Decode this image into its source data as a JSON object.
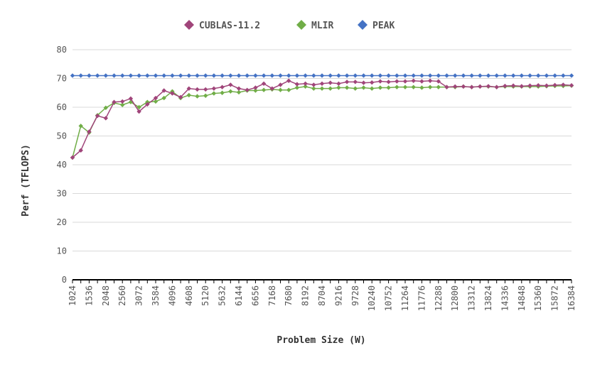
{
  "chart_data": {
    "type": "line",
    "xlabel": "Problem Size (W)",
    "ylabel": "Perf (TFLOPS)",
    "ylim": [
      0,
      80
    ],
    "yticks": [
      0,
      10,
      20,
      30,
      40,
      50,
      60,
      70,
      80
    ],
    "grid": "horizontal",
    "legend_position": "top-center",
    "x": [
      1024,
      1280,
      1536,
      1792,
      2048,
      2304,
      2560,
      2816,
      3072,
      3328,
      3584,
      3840,
      4096,
      4352,
      4608,
      4864,
      5120,
      5376,
      5632,
      5888,
      6144,
      6400,
      6656,
      6912,
      7168,
      7424,
      7680,
      7936,
      8192,
      8448,
      8704,
      8960,
      9216,
      9472,
      9728,
      9984,
      10240,
      10496,
      10752,
      11008,
      11264,
      11520,
      11776,
      12032,
      12288,
      12544,
      12800,
      13056,
      13312,
      13568,
      13824,
      14080,
      14336,
      14592,
      14848,
      15104,
      15360,
      15616,
      15872,
      16128,
      16384
    ],
    "x_tick_labels": [
      "1024",
      "1536",
      "2048",
      "2560",
      "3072",
      "3584",
      "4096",
      "4608",
      "5120",
      "5632",
      "6144",
      "6656",
      "7168",
      "7680",
      "8192",
      "8704",
      "9216",
      "9728",
      "10240",
      "10752",
      "11264",
      "11776",
      "12288",
      "12800",
      "13312",
      "13824",
      "14336",
      "14848",
      "15360",
      "15872",
      "16384"
    ],
    "series": [
      {
        "name": "CUBLAS-11.2",
        "color": "#a0457a",
        "values": [
          42.5,
          45.0,
          51.5,
          57.0,
          56.2,
          61.8,
          62.0,
          63.0,
          58.5,
          61.0,
          63.2,
          65.8,
          64.8,
          63.5,
          66.5,
          66.2,
          66.2,
          66.5,
          67.0,
          67.8,
          66.5,
          66.0,
          66.8,
          68.2,
          66.5,
          67.8,
          69.2,
          68.0,
          68.2,
          67.8,
          68.2,
          68.5,
          68.2,
          68.8,
          68.8,
          68.5,
          68.6,
          69.0,
          68.8,
          69.0,
          69.0,
          69.2,
          69.0,
          69.2,
          69.0,
          67.0,
          67.2,
          67.2,
          67.0,
          67.2,
          67.3,
          67.0,
          67.4,
          67.5,
          67.3,
          67.5,
          67.6,
          67.5,
          67.7,
          67.8,
          67.6
        ]
      },
      {
        "name": "MLIR",
        "color": "#70ad47",
        "values": [
          42.5,
          53.5,
          51.2,
          57.2,
          59.8,
          61.5,
          60.8,
          61.8,
          60.0,
          61.8,
          62.0,
          63.2,
          65.5,
          63.2,
          64.2,
          63.8,
          64.0,
          64.8,
          65.0,
          65.5,
          65.2,
          65.8,
          65.8,
          66.0,
          66.2,
          66.0,
          66.0,
          66.8,
          67.2,
          66.5,
          66.5,
          66.5,
          66.8,
          66.8,
          66.5,
          66.8,
          66.5,
          66.8,
          66.8,
          67.0,
          67.0,
          67.0,
          66.8,
          67.0,
          67.0,
          67.0,
          67.0,
          67.2,
          67.0,
          67.2,
          67.2,
          67.0,
          67.2,
          67.2,
          67.2,
          67.2,
          67.2,
          67.3,
          67.4,
          67.4,
          67.5
        ]
      },
      {
        "name": "PEAK",
        "color": "#4472c4",
        "values": [
          71,
          71,
          71,
          71,
          71,
          71,
          71,
          71,
          71,
          71,
          71,
          71,
          71,
          71,
          71,
          71,
          71,
          71,
          71,
          71,
          71,
          71,
          71,
          71,
          71,
          71,
          71,
          71,
          71,
          71,
          71,
          71,
          71,
          71,
          71,
          71,
          71,
          71,
          71,
          71,
          71,
          71,
          71,
          71,
          71,
          71,
          71,
          71,
          71,
          71,
          71,
          71,
          71,
          71,
          71,
          71,
          71,
          71,
          71,
          71,
          71
        ]
      }
    ]
  }
}
